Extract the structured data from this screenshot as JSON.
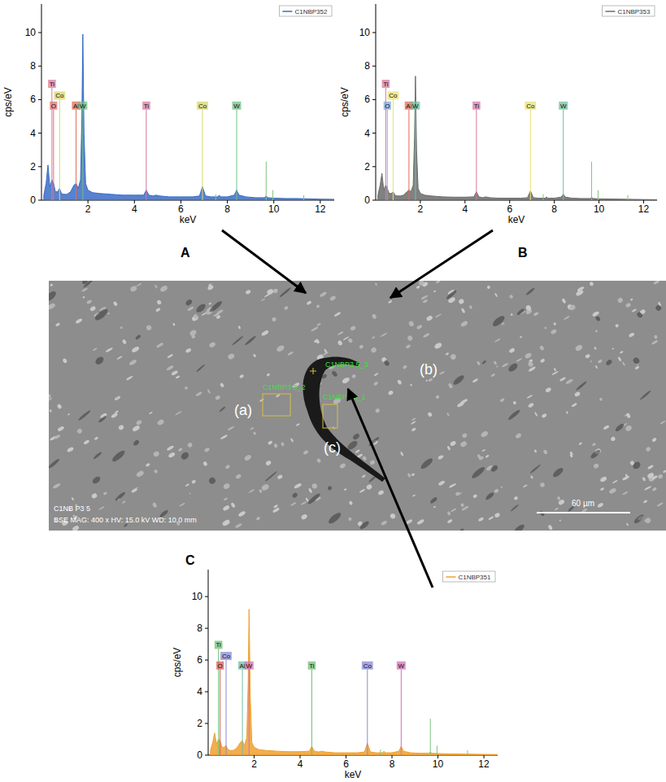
{
  "chart_data": [
    {
      "type": "area",
      "label": "A",
      "xlabel": "keV",
      "ylabel": "cps/eV",
      "xlim": [
        0,
        12.6
      ],
      "ylim": [
        0,
        11.7
      ],
      "xticks": [
        2,
        4,
        6,
        8,
        10,
        12
      ],
      "yticks": [
        0,
        2,
        4,
        6,
        8,
        10
      ],
      "legend": "top-right",
      "x": [
        0.1,
        0.2,
        0.28,
        0.36,
        0.45,
        0.52,
        0.6,
        0.7,
        0.78,
        0.86,
        0.95,
        1.1,
        1.25,
        1.4,
        1.49,
        1.58,
        1.68,
        1.74,
        1.78,
        1.83,
        1.9,
        2.0,
        2.2,
        2.5,
        3.0,
        3.5,
        4.0,
        4.4,
        4.51,
        4.62,
        4.8,
        4.93,
        5.1,
        5.5,
        6.0,
        6.5,
        6.8,
        6.93,
        7.06,
        7.3,
        7.6,
        7.65,
        7.7,
        8.0,
        8.3,
        8.4,
        8.5,
        8.8,
        9.2,
        9.6,
        9.67,
        9.74,
        10.0,
        10.5,
        11.0,
        11.5,
        12.0,
        12.6
      ],
      "series": [
        {
          "name": "C1NBP352",
          "color": "#3b6cc7",
          "values": [
            0.3,
            1.0,
            2.1,
            0.8,
            1.2,
            1.0,
            0.5,
            0.5,
            0.7,
            0.4,
            0.35,
            0.35,
            0.5,
            0.9,
            1.0,
            0.7,
            1.2,
            5.0,
            9.9,
            4.0,
            1.0,
            0.6,
            0.45,
            0.4,
            0.35,
            0.3,
            0.3,
            0.3,
            0.6,
            0.3,
            0.25,
            0.3,
            0.25,
            0.2,
            0.2,
            0.2,
            0.25,
            0.8,
            0.25,
            0.2,
            0.2,
            0.3,
            0.2,
            0.2,
            0.3,
            0.6,
            0.3,
            0.2,
            0.15,
            0.15,
            0.25,
            0.15,
            0.12,
            0.1,
            0.1,
            0.08,
            0.06,
            0.05
          ]
        }
      ],
      "element_markers": [
        {
          "label": "Ti",
          "x": 0.45,
          "y": 6.7,
          "color": "#d9789c"
        },
        {
          "label": "O",
          "x": 0.52,
          "y": 5.4,
          "color": "#e07070"
        },
        {
          "label": "Co",
          "x": 0.78,
          "y": 6.0,
          "color": "#d6d66a"
        },
        {
          "label": "Al",
          "x": 1.49,
          "y": 5.4,
          "color": "#e06a55"
        },
        {
          "label": "W",
          "x": 1.78,
          "y": 5.4,
          "color": "#6fc084"
        },
        {
          "label": "Ti",
          "x": 4.51,
          "y": 5.4,
          "color": "#d9789c"
        },
        {
          "label": "Co",
          "x": 6.93,
          "y": 5.4,
          "color": "#d6d66a"
        },
        {
          "label": "W",
          "x": 8.4,
          "y": 5.4,
          "color": "#6fc084"
        }
      ],
      "reference_lines": [
        {
          "x": 7.5,
          "y": 0.35
        },
        {
          "x": 9.67,
          "y": 2.3
        },
        {
          "x": 9.96,
          "y": 0.6
        },
        {
          "x": 11.29,
          "y": 0.3
        }
      ]
    },
    {
      "type": "area",
      "label": "B",
      "xlabel": "keV",
      "ylabel": "cps/eV",
      "xlim": [
        0,
        12.6
      ],
      "ylim": [
        0,
        11.7
      ],
      "xticks": [
        2,
        4,
        6,
        8,
        10,
        12
      ],
      "yticks": [
        0,
        2,
        4,
        6,
        8,
        10
      ],
      "legend": "top-right",
      "x": [
        0.1,
        0.2,
        0.28,
        0.36,
        0.45,
        0.52,
        0.6,
        0.7,
        0.78,
        0.86,
        0.95,
        1.1,
        1.25,
        1.4,
        1.49,
        1.58,
        1.68,
        1.74,
        1.78,
        1.83,
        1.9,
        2.0,
        2.2,
        2.5,
        3.0,
        3.5,
        4.0,
        4.4,
        4.51,
        4.62,
        4.8,
        4.93,
        5.1,
        5.5,
        6.0,
        6.5,
        6.8,
        6.93,
        7.06,
        7.3,
        7.6,
        7.65,
        7.7,
        8.0,
        8.3,
        8.4,
        8.5,
        8.8,
        9.2,
        9.6,
        9.67,
        9.74,
        10.0,
        10.5,
        11.0,
        11.5,
        12.0,
        12.6
      ],
      "series": [
        {
          "name": "C1NBP353",
          "color": "#6b6b6b",
          "values": [
            0.3,
            0.9,
            1.6,
            0.6,
            0.9,
            0.7,
            0.4,
            0.4,
            0.5,
            0.3,
            0.25,
            0.25,
            0.3,
            0.5,
            0.6,
            0.5,
            0.9,
            3.8,
            7.4,
            3.0,
            0.7,
            0.4,
            0.3,
            0.25,
            0.2,
            0.18,
            0.18,
            0.2,
            0.5,
            0.2,
            0.15,
            0.2,
            0.15,
            0.12,
            0.12,
            0.12,
            0.15,
            0.55,
            0.15,
            0.12,
            0.12,
            0.2,
            0.12,
            0.12,
            0.18,
            0.35,
            0.18,
            0.12,
            0.1,
            0.1,
            0.15,
            0.1,
            0.08,
            0.07,
            0.06,
            0.05,
            0.04,
            0.03
          ]
        }
      ],
      "element_markers": [
        {
          "label": "Ti",
          "x": 0.45,
          "y": 6.7,
          "color": "#d9789c"
        },
        {
          "label": "O",
          "x": 0.52,
          "y": 5.4,
          "color": "#80a8e0"
        },
        {
          "label": "Co",
          "x": 0.78,
          "y": 6.0,
          "color": "#e8e070"
        },
        {
          "label": "Al",
          "x": 1.49,
          "y": 5.4,
          "color": "#e06a55"
        },
        {
          "label": "W",
          "x": 1.78,
          "y": 5.4,
          "color": "#6fc0a0"
        },
        {
          "label": "Ti",
          "x": 4.51,
          "y": 5.4,
          "color": "#d9789c"
        },
        {
          "label": "Co",
          "x": 6.93,
          "y": 5.4,
          "color": "#e8e070"
        },
        {
          "label": "W",
          "x": 8.4,
          "y": 5.4,
          "color": "#6fc0a0"
        }
      ],
      "reference_lines": [
        {
          "x": 7.5,
          "y": 0.35
        },
        {
          "x": 9.67,
          "y": 2.3
        },
        {
          "x": 9.96,
          "y": 0.6
        },
        {
          "x": 11.29,
          "y": 0.3
        }
      ]
    },
    {
      "type": "area",
      "label": "C",
      "xlabel": "keV",
      "ylabel": "cps/eV",
      "xlim": [
        0,
        12.6
      ],
      "ylim": [
        0,
        11.7
      ],
      "xticks": [
        2,
        4,
        6,
        8,
        10,
        12
      ],
      "yticks": [
        0,
        2,
        4,
        6,
        8,
        10
      ],
      "legend": "top-right",
      "x": [
        0.1,
        0.2,
        0.28,
        0.36,
        0.45,
        0.52,
        0.6,
        0.7,
        0.78,
        0.86,
        0.95,
        1.1,
        1.25,
        1.4,
        1.49,
        1.58,
        1.68,
        1.74,
        1.78,
        1.83,
        1.9,
        2.0,
        2.2,
        2.5,
        3.0,
        3.5,
        4.0,
        4.4,
        4.51,
        4.62,
        4.8,
        4.93,
        5.1,
        5.5,
        6.0,
        6.5,
        6.8,
        6.93,
        7.06,
        7.3,
        7.6,
        7.65,
        7.7,
        8.0,
        8.3,
        8.4,
        8.5,
        8.8,
        9.2,
        9.6,
        9.67,
        9.74,
        10.0,
        10.5,
        11.0,
        11.5,
        12.0,
        12.6
      ],
      "series": [
        {
          "name": "C1NBP351",
          "color": "#f0a030",
          "values": [
            0.3,
            0.8,
            1.4,
            0.7,
            1.0,
            0.9,
            0.5,
            0.5,
            0.6,
            0.35,
            0.3,
            0.3,
            0.45,
            0.8,
            0.9,
            0.6,
            1.1,
            4.5,
            9.2,
            3.8,
            0.8,
            0.5,
            0.35,
            0.3,
            0.25,
            0.22,
            0.22,
            0.25,
            0.55,
            0.25,
            0.2,
            0.25,
            0.2,
            0.15,
            0.15,
            0.15,
            0.2,
            0.75,
            0.2,
            0.15,
            0.15,
            0.25,
            0.15,
            0.15,
            0.25,
            0.55,
            0.25,
            0.15,
            0.12,
            0.12,
            0.2,
            0.12,
            0.1,
            0.08,
            0.07,
            0.06,
            0.05,
            0.04
          ]
        }
      ],
      "element_markers": [
        {
          "label": "Ti",
          "x": 0.45,
          "y": 6.7,
          "color": "#70c070"
        },
        {
          "label": "O",
          "x": 0.52,
          "y": 5.4,
          "color": "#e05a5a"
        },
        {
          "label": "Co",
          "x": 0.78,
          "y": 6.0,
          "color": "#8a8ad8"
        },
        {
          "label": "Al",
          "x": 1.49,
          "y": 5.4,
          "color": "#70c0a0"
        },
        {
          "label": "W",
          "x": 1.78,
          "y": 5.4,
          "color": "#d070b8"
        },
        {
          "label": "Ti",
          "x": 4.51,
          "y": 5.4,
          "color": "#70c070"
        },
        {
          "label": "Co",
          "x": 6.93,
          "y": 5.4,
          "color": "#8a8ad8"
        },
        {
          "label": "W",
          "x": 8.4,
          "y": 5.4,
          "color": "#d070b8"
        }
      ],
      "reference_lines": [
        {
          "x": 7.5,
          "y": 0.35
        },
        {
          "x": 9.67,
          "y": 2.3
        },
        {
          "x": 9.96,
          "y": 0.6
        },
        {
          "x": 11.29,
          "y": 0.3
        }
      ]
    }
  ],
  "micrograph": {
    "header": "C1NB P3 5",
    "info": "BSE MAG: 400 x HV: 15.0 kV WD: 10.0 mm",
    "scale_bar": "60 µm",
    "regions": [
      "(a)",
      "(b)",
      "(c)"
    ],
    "spot_labels": [
      "C1NBP3 5_2",
      "C1NBP3 5_3",
      "C1NBP3 5_1"
    ]
  }
}
